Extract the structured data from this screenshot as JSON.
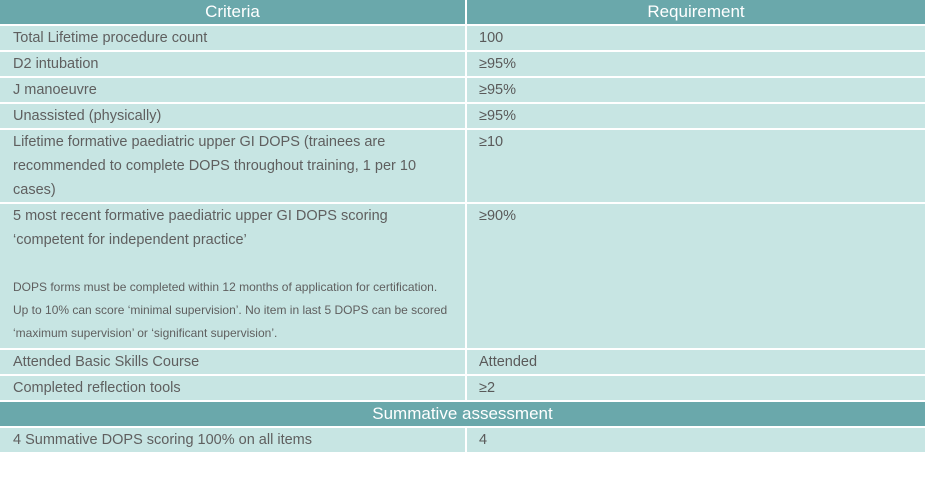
{
  "table": {
    "header": {
      "criteria": "Criteria",
      "requirement": "Requirement"
    },
    "rows": [
      {
        "criteria": "Total Lifetime procedure count",
        "requirement": "100"
      },
      {
        "criteria": "D2 intubation",
        "requirement": "≥95%"
      },
      {
        "criteria": "J manoeuvre",
        "requirement": "≥95%"
      },
      {
        "criteria": "Unassisted (physically)",
        "requirement": "≥95%"
      },
      {
        "criteria": "Lifetime formative paediatric upper GI DOPS (trainees are recommended to complete DOPS throughout training, 1 per 10 cases)",
        "requirement": "≥10"
      },
      {
        "criteria": "5 most recent formative paediatric upper GI DOPS scoring ‘competent for independent practice’",
        "note": "DOPS forms must be completed within 12 months of application for certification. Up to 10% can score ‘minimal supervision’. No item in last 5 DOPS can be scored ‘maximum supervision’ or ‘significant supervision’.",
        "requirement": "≥90%"
      },
      {
        "criteria": "Attended Basic Skills Course",
        "requirement": "Attended"
      },
      {
        "criteria": "Completed reflection tools",
        "requirement": "≥2"
      }
    ],
    "section_title": "Summative assessment",
    "summative_rows": [
      {
        "criteria": "4 Summative DOPS scoring 100% on all items",
        "requirement": "4"
      }
    ]
  },
  "colors": {
    "header_bg": "#6aa8ab",
    "row_bg": "#c7e5e3",
    "text": "#595959"
  }
}
